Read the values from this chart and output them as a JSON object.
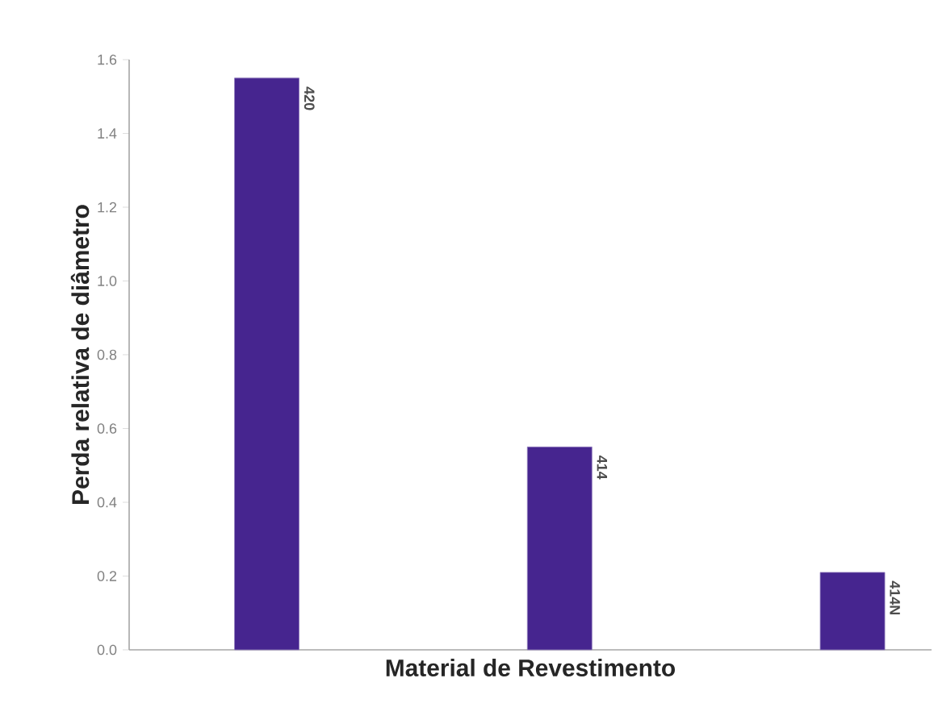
{
  "chart_data": {
    "type": "bar",
    "xlabel": "Material de Revestimento",
    "ylabel": "Perda relativa de diâmetro",
    "categories": [
      "420",
      "414",
      "414N"
    ],
    "values": [
      1.55,
      0.55,
      0.21
    ],
    "color": "#46258f",
    "ylim": [
      0,
      1.6
    ],
    "yticks": [
      {
        "value": 0,
        "label": "0.0"
      },
      0.2,
      0.4,
      0.6,
      0.8,
      {
        "value": 1,
        "label": "1.0"
      },
      1.2,
      1.4,
      1.6
    ],
    "grid": false
  }
}
